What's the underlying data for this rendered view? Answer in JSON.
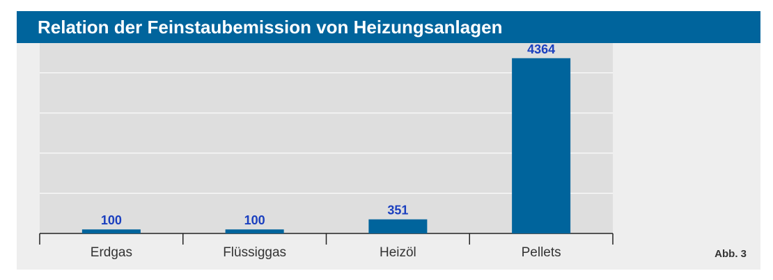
{
  "header": {
    "title": "Relation der Feinstaubemission von Heizungsanlagen"
  },
  "figure_label": "Abb. 3",
  "colors": {
    "header_bg": "#00649c",
    "bar": "#00649c",
    "value_label": "#1a3fbf",
    "plot_bg": "#dedede",
    "page_bg": "#eeeeee"
  },
  "chart_data": {
    "type": "bar",
    "title": "Relation der Feinstaubemission von Heizungsanlagen",
    "categories": [
      "Erdgas",
      "Flüssiggas",
      "Heizöl",
      "Pellets"
    ],
    "values": [
      100,
      100,
      351,
      4364
    ],
    "value_labels": [
      "100",
      "100",
      "351",
      "4364"
    ],
    "xlabel": "",
    "ylabel": "",
    "ylim": [
      0,
      5000
    ],
    "grid": true,
    "legend": "none"
  }
}
